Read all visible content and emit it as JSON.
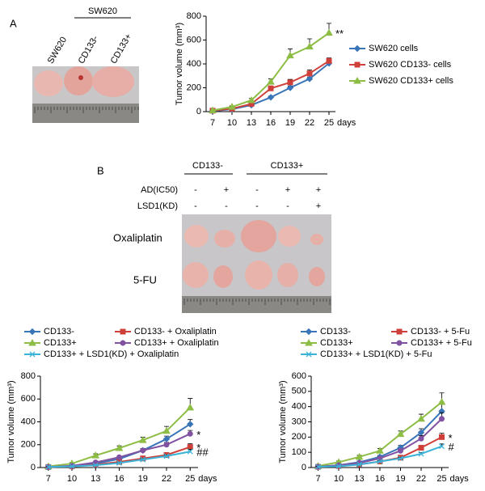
{
  "panel_labels": [
    "A",
    "B"
  ],
  "panel_a_photo": {
    "group_label": "SW620",
    "labels": [
      "SW620",
      "CD133-",
      "CD133+"
    ]
  },
  "panel_b_photo": {
    "groups": [
      "CD133-",
      "CD133+"
    ],
    "conditions": [
      {
        "name": "AD(IC50)",
        "marks": [
          "-",
          "+",
          "-",
          "+",
          "+"
        ]
      },
      {
        "name": "LSD1(KD)",
        "marks": [
          "-",
          "-",
          "-",
          "-",
          "+"
        ]
      }
    ],
    "rows": [
      "Oxaliplatin",
      "5-FU"
    ]
  },
  "chart_data": [
    {
      "type": "line",
      "ylabel": "Tumor volume (mm³)",
      "xlabel": "days",
      "x": [
        7,
        10,
        13,
        16,
        19,
        22,
        25
      ],
      "xlim": [
        6,
        26
      ],
      "xticks": [
        7,
        10,
        13,
        16,
        19,
        22,
        25
      ],
      "ylim": [
        0,
        800
      ],
      "yticks": [
        0,
        200,
        400,
        600,
        800
      ],
      "legend": "right",
      "series": [
        {
          "name": "SW620 cells",
          "color": "#3a75b8",
          "marker": "diamond",
          "values": [
            5,
            20,
            55,
            120,
            200,
            275,
            405
          ],
          "errors": [
            3,
            5,
            8,
            10,
            15,
            15,
            20
          ]
        },
        {
          "name": "SW620 CD133- cells",
          "color": "#d0403a",
          "marker": "square",
          "values": [
            8,
            25,
            65,
            195,
            245,
            320,
            425
          ],
          "errors": [
            3,
            5,
            10,
            20,
            25,
            30,
            25
          ]
        },
        {
          "name": "SW620 CD133+ cells",
          "color": "#8dbd45",
          "marker": "triangle",
          "values": [
            10,
            40,
            95,
            250,
            470,
            545,
            660
          ],
          "errors": [
            3,
            8,
            15,
            25,
            55,
            65,
            80
          ],
          "annotation": "**"
        }
      ]
    },
    {
      "type": "line",
      "ylabel": "Tumor volume (mm³)",
      "xlabel": "days",
      "x": [
        7,
        10,
        13,
        16,
        19,
        22,
        25
      ],
      "xlim": [
        6,
        26
      ],
      "xticks": [
        7,
        10,
        13,
        16,
        19,
        22,
        25
      ],
      "ylim": [
        0,
        800
      ],
      "yticks": [
        0,
        200,
        400,
        600,
        800
      ],
      "legend": "top",
      "series": [
        {
          "name": "CD133-",
          "color": "#3a75b8",
          "marker": "diamond",
          "values": [
            5,
            15,
            35,
            75,
            150,
            250,
            380
          ],
          "errors": [
            3,
            5,
            8,
            10,
            15,
            25,
            40
          ]
        },
        {
          "name": "CD133- + Oxaliplatin",
          "color": "#d0403a",
          "marker": "square",
          "values": [
            5,
            10,
            25,
            50,
            80,
            110,
            180
          ],
          "errors": [
            3,
            4,
            5,
            8,
            10,
            15,
            30
          ],
          "annotation": "*"
        },
        {
          "name": "CD133+",
          "color": "#8dbd45",
          "marker": "triangle",
          "values": [
            10,
            35,
            105,
            170,
            240,
            320,
            525
          ],
          "errors": [
            3,
            8,
            15,
            20,
            25,
            40,
            80
          ]
        },
        {
          "name": "CD133+ + Oxaliplatin",
          "color": "#8152a2",
          "marker": "circle",
          "values": [
            5,
            15,
            45,
            90,
            150,
            200,
            295
          ],
          "errors": [
            3,
            5,
            8,
            10,
            15,
            20,
            30
          ],
          "annotation": "*"
        },
        {
          "name": "CD133+ + LSD1(KD) + Oxaliplatin",
          "color": "#3bb2d8",
          "marker": "cross",
          "values": [
            5,
            10,
            20,
            40,
            70,
            100,
            140
          ],
          "errors": [
            2,
            3,
            5,
            6,
            8,
            10,
            20
          ],
          "annotation": "##"
        }
      ]
    },
    {
      "type": "line",
      "ylabel": "Tumor volume (mm³)",
      "xlabel": "days",
      "x": [
        7,
        10,
        13,
        16,
        19,
        22,
        25
      ],
      "xlim": [
        6,
        26
      ],
      "xticks": [
        7,
        10,
        13,
        16,
        19,
        22,
        25
      ],
      "ylim": [
        0,
        600
      ],
      "yticks": [
        0,
        100,
        200,
        300,
        400,
        500,
        600
      ],
      "legend": "top",
      "series": [
        {
          "name": "CD133-",
          "color": "#3a75b8",
          "marker": "diamond",
          "values": [
            5,
            15,
            35,
            70,
            130,
            230,
            370
          ],
          "errors": [
            3,
            5,
            8,
            10,
            15,
            25,
            60
          ]
        },
        {
          "name": "CD133- + 5-Fu",
          "color": "#d0403a",
          "marker": "square",
          "values": [
            5,
            10,
            20,
            40,
            65,
            130,
            200
          ],
          "errors": [
            2,
            3,
            5,
            6,
            8,
            15,
            25
          ],
          "annotation": "*"
        },
        {
          "name": "CD133+",
          "color": "#8dbd45",
          "marker": "triangle",
          "values": [
            10,
            35,
            70,
            110,
            220,
            320,
            430
          ],
          "errors": [
            3,
            8,
            10,
            15,
            20,
            30,
            60
          ]
        },
        {
          "name": "CD133+ + 5-Fu",
          "color": "#8152a2",
          "marker": "circle",
          "values": [
            5,
            15,
            30,
            60,
            110,
            190,
            320
          ],
          "errors": [
            3,
            4,
            6,
            8,
            12,
            20,
            40
          ]
        },
        {
          "name": "CD133+ + LSD1(KD) + 5-Fu",
          "color": "#3bb2d8",
          "marker": "cross",
          "values": [
            5,
            8,
            20,
            40,
            60,
            90,
            140
          ],
          "errors": [
            2,
            3,
            4,
            5,
            6,
            8,
            15
          ],
          "annotation": "#"
        }
      ]
    }
  ]
}
